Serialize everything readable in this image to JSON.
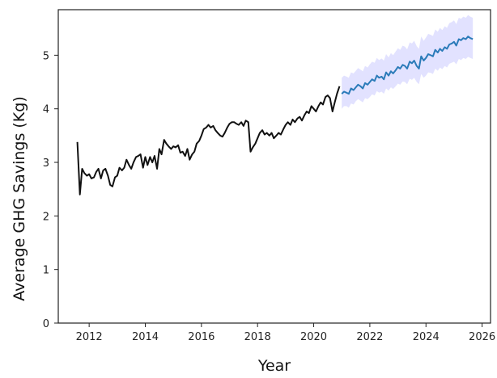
{
  "chart_data": {
    "type": "line",
    "xlabel": "Year",
    "ylabel": "Average GHG Savings (Kg)",
    "xlim": [
      2010.9,
      2026.3
    ],
    "ylim": [
      0,
      5.85
    ],
    "x_ticks": [
      2012,
      2014,
      2016,
      2018,
      2020,
      2022,
      2024,
      2026
    ],
    "y_ticks": [
      0,
      1,
      2,
      3,
      4,
      5
    ],
    "grid": false,
    "legend": "none",
    "colors": {
      "historical": "#111111",
      "forecast": "#2b7bb9",
      "band": "#7b7bff"
    },
    "series": [
      {
        "role": "historical",
        "x": [
          2011.58,
          2011.67,
          2011.75,
          2011.83,
          2011.92,
          2012.0,
          2012.08,
          2012.17,
          2012.25,
          2012.33,
          2012.42,
          2012.5,
          2012.58,
          2012.67,
          2012.75,
          2012.83,
          2012.92,
          2013.0,
          2013.08,
          2013.17,
          2013.25,
          2013.33,
          2013.42,
          2013.5,
          2013.58,
          2013.67,
          2013.75,
          2013.83,
          2013.92,
          2014.0,
          2014.08,
          2014.17,
          2014.25,
          2014.33,
          2014.42,
          2014.5,
          2014.58,
          2014.67,
          2014.75,
          2014.83,
          2014.92,
          2015.0,
          2015.08,
          2015.17,
          2015.25,
          2015.33,
          2015.42,
          2015.5,
          2015.58,
          2015.67,
          2015.75,
          2015.83,
          2015.92,
          2016.0,
          2016.08,
          2016.17,
          2016.25,
          2016.33,
          2016.42,
          2016.5,
          2016.58,
          2016.67,
          2016.75,
          2016.83,
          2016.92,
          2017.0,
          2017.08,
          2017.17,
          2017.25,
          2017.33,
          2017.42,
          2017.5,
          2017.58,
          2017.67,
          2017.75,
          2017.83,
          2017.92,
          2018.0,
          2018.08,
          2018.17,
          2018.25,
          2018.33,
          2018.42,
          2018.5,
          2018.58,
          2018.67,
          2018.75,
          2018.83,
          2018.92,
          2019.0,
          2019.08,
          2019.17,
          2019.25,
          2019.33,
          2019.42,
          2019.5,
          2019.58,
          2019.67,
          2019.75,
          2019.83,
          2019.92,
          2020.0,
          2020.08,
          2020.17,
          2020.25,
          2020.33,
          2020.42,
          2020.5,
          2020.58,
          2020.67,
          2020.75,
          2020.83,
          2020.92
        ],
        "values": [
          3.38,
          2.4,
          2.88,
          2.8,
          2.75,
          2.78,
          2.7,
          2.72,
          2.82,
          2.88,
          2.7,
          2.85,
          2.88,
          2.75,
          2.58,
          2.55,
          2.72,
          2.75,
          2.9,
          2.85,
          2.9,
          3.05,
          2.95,
          2.88,
          3.0,
          3.1,
          3.12,
          3.15,
          2.9,
          3.1,
          2.95,
          3.1,
          3.0,
          3.12,
          2.88,
          3.25,
          3.15,
          3.42,
          3.35,
          3.3,
          3.25,
          3.3,
          3.28,
          3.32,
          3.18,
          3.2,
          3.12,
          3.25,
          3.05,
          3.15,
          3.2,
          3.35,
          3.4,
          3.5,
          3.62,
          3.65,
          3.7,
          3.65,
          3.68,
          3.6,
          3.55,
          3.5,
          3.48,
          3.55,
          3.65,
          3.72,
          3.75,
          3.75,
          3.72,
          3.7,
          3.75,
          3.68,
          3.78,
          3.75,
          3.2,
          3.28,
          3.35,
          3.45,
          3.55,
          3.6,
          3.52,
          3.55,
          3.5,
          3.55,
          3.45,
          3.5,
          3.55,
          3.52,
          3.62,
          3.7,
          3.75,
          3.7,
          3.8,
          3.75,
          3.82,
          3.85,
          3.78,
          3.88,
          3.95,
          3.92,
          4.05,
          4.0,
          3.95,
          4.05,
          4.12,
          4.08,
          4.22,
          4.25,
          4.2,
          3.95,
          4.12,
          4.28,
          4.42
        ]
      },
      {
        "role": "forecast",
        "x": [
          2021.0,
          2021.08,
          2021.17,
          2021.25,
          2021.33,
          2021.42,
          2021.5,
          2021.58,
          2021.67,
          2021.75,
          2021.83,
          2021.92,
          2022.0,
          2022.08,
          2022.17,
          2022.25,
          2022.33,
          2022.42,
          2022.5,
          2022.58,
          2022.67,
          2022.75,
          2022.83,
          2022.92,
          2023.0,
          2023.08,
          2023.17,
          2023.25,
          2023.33,
          2023.42,
          2023.5,
          2023.58,
          2023.67,
          2023.75,
          2023.83,
          2023.92,
          2024.0,
          2024.08,
          2024.17,
          2024.25,
          2024.33,
          2024.42,
          2024.5,
          2024.58,
          2024.67,
          2024.75,
          2024.83,
          2024.92,
          2025.0,
          2025.08,
          2025.17,
          2025.25,
          2025.33,
          2025.42,
          2025.5,
          2025.58,
          2025.67
        ],
        "values": [
          4.28,
          4.32,
          4.3,
          4.28,
          4.38,
          4.35,
          4.4,
          4.45,
          4.42,
          4.38,
          4.48,
          4.45,
          4.5,
          4.55,
          4.52,
          4.62,
          4.58,
          4.6,
          4.55,
          4.68,
          4.62,
          4.7,
          4.66,
          4.72,
          4.78,
          4.75,
          4.82,
          4.8,
          4.75,
          4.88,
          4.85,
          4.9,
          4.8,
          4.75,
          4.98,
          4.9,
          4.95,
          5.02,
          5.0,
          4.98,
          5.1,
          5.05,
          5.12,
          5.08,
          5.15,
          5.12,
          5.2,
          5.22,
          5.25,
          5.18,
          5.3,
          5.28,
          5.32,
          5.3,
          5.35,
          5.32,
          5.3
        ],
        "lower": [
          4.0,
          4.05,
          4.05,
          4.02,
          4.1,
          4.08,
          4.14,
          4.18,
          4.15,
          4.12,
          4.2,
          4.18,
          4.22,
          4.27,
          4.25,
          4.33,
          4.3,
          4.32,
          4.28,
          4.38,
          4.34,
          4.4,
          4.37,
          4.42,
          4.47,
          4.45,
          4.51,
          4.5,
          4.46,
          4.56,
          4.54,
          4.58,
          4.5,
          4.46,
          4.65,
          4.58,
          4.62,
          4.68,
          4.67,
          4.65,
          4.75,
          4.71,
          4.77,
          4.74,
          4.8,
          4.77,
          4.84,
          4.86,
          4.88,
          4.83,
          4.93,
          4.91,
          4.95,
          4.93,
          4.97,
          4.95,
          4.93
        ],
        "upper": [
          4.58,
          4.62,
          4.6,
          4.58,
          4.68,
          4.66,
          4.71,
          4.76,
          4.73,
          4.7,
          4.8,
          4.77,
          4.83,
          4.88,
          4.86,
          4.95,
          4.91,
          4.94,
          4.9,
          5.02,
          4.96,
          5.04,
          5.0,
          5.07,
          5.13,
          5.1,
          5.18,
          5.16,
          5.11,
          5.24,
          5.22,
          5.27,
          5.17,
          5.12,
          5.35,
          5.27,
          5.33,
          5.4,
          5.38,
          5.36,
          5.48,
          5.44,
          5.51,
          5.47,
          5.54,
          5.51,
          5.6,
          5.62,
          5.65,
          5.58,
          5.7,
          5.68,
          5.72,
          5.7,
          5.75,
          5.72,
          5.7
        ]
      }
    ]
  }
}
